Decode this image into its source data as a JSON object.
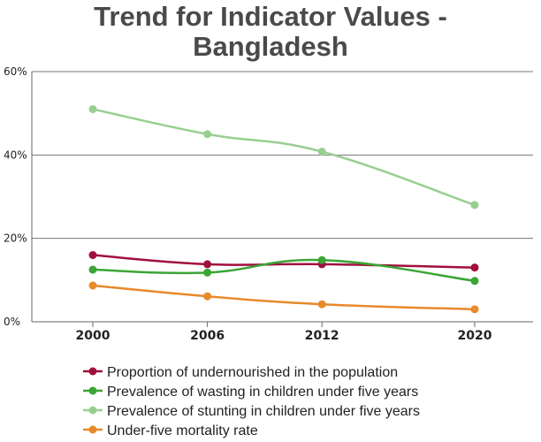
{
  "chart_data": {
    "type": "line",
    "title": "Trend for Indicator Values -",
    "subtitle": "Bangladesh",
    "xlabel": "",
    "ylabel": "",
    "x": [
      2000,
      2006,
      2012,
      2020
    ],
    "x_tick_labels": [
      "2000",
      "2006",
      "2012",
      "2020"
    ],
    "ylim": [
      0,
      60
    ],
    "y_ticks": [
      0,
      20,
      40,
      60
    ],
    "y_tick_labels": [
      "0%",
      "20%",
      "40%",
      "60%"
    ],
    "grid": true,
    "legend_position": "bottom",
    "series": [
      {
        "name": "Proportion of undernourished in the population",
        "color": "#a0103c",
        "values": [
          16.0,
          13.8,
          13.8,
          13.0
        ]
      },
      {
        "name": "Prevalence of wasting in children under five years",
        "color": "#3aa535",
        "values": [
          12.5,
          11.8,
          14.8,
          9.8
        ]
      },
      {
        "name": "Prevalence of stunting in children under five years",
        "color": "#98cf90",
        "values": [
          51.0,
          45.0,
          40.8,
          28.0
        ]
      },
      {
        "name": "Under-five mortality rate",
        "color": "#e8892a",
        "values": [
          8.7,
          6.1,
          4.2,
          3.0
        ]
      }
    ]
  }
}
